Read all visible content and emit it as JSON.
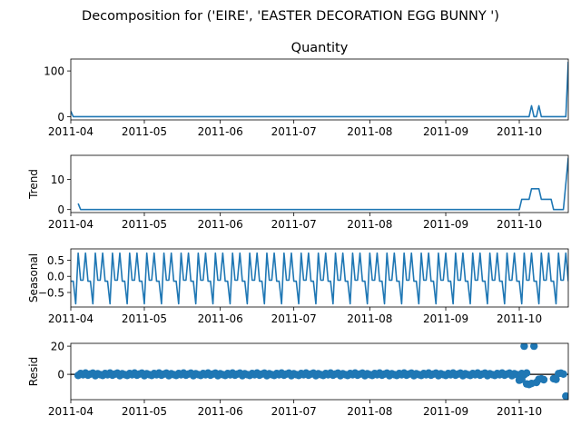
{
  "figure": {
    "suptitle": "Decomposition for ('EIRE', 'EASTER DECORATION EGG BUNNY ')",
    "line_color": "#1f77b4",
    "zero_line_color": "#000000"
  },
  "chart_data": [
    {
      "type": "line",
      "title": "Quantity",
      "ylabel": "",
      "ylim": [
        -7,
        126
      ],
      "yticks": [
        0,
        100
      ],
      "x_start": "2011-04-01",
      "x_end": "2011-10-21",
      "xticks": [
        "2011-04",
        "2011-05",
        "2011-06",
        "2011-07",
        "2011-08",
        "2011-09",
        "2011-10"
      ],
      "series": [
        {
          "x": [
            "2011-04-01",
            "2011-04-02",
            "2011-10-05",
            "2011-10-06",
            "2011-10-07",
            "2011-10-08",
            "2011-10-09",
            "2011-10-10",
            "2011-10-11",
            "2011-10-20",
            "2011-10-21"
          ],
          "values": [
            12,
            0,
            0,
            24,
            0,
            0,
            24,
            0,
            0,
            0,
            120
          ]
        }
      ]
    },
    {
      "type": "line",
      "title": "",
      "ylabel": "Trend",
      "ylim": [
        -1,
        18
      ],
      "yticks": [
        0,
        10
      ],
      "x_start": "2011-04-01",
      "x_end": "2011-10-21",
      "xticks": [
        "2011-04",
        "2011-05",
        "2011-06",
        "2011-07",
        "2011-08",
        "2011-09",
        "2011-10"
      ],
      "series": [
        {
          "x": [
            "2011-04-04",
            "2011-04-05",
            "2011-10-01",
            "2011-10-02",
            "2011-10-05",
            "2011-10-06",
            "2011-10-09",
            "2011-10-10",
            "2011-10-14",
            "2011-10-15",
            "2011-10-18",
            "2011-10-19",
            "2011-10-21"
          ],
          "values": [
            2,
            0,
            0,
            3.4,
            3.4,
            6.9,
            6.9,
            3.4,
            3.4,
            0,
            0,
            0,
            17.2
          ]
        }
      ]
    },
    {
      "type": "line",
      "title": "",
      "ylabel": "Seasonal",
      "ylim": [
        -0.95,
        0.85
      ],
      "yticks": [
        0.5,
        0.0,
        -0.5
      ],
      "ytick_labels": [
        "0.5",
        "0.0",
        "−0.5"
      ],
      "x_start": "2011-04-01",
      "x_end": "2011-10-21",
      "xticks": [
        "2011-04",
        "2011-05",
        "2011-06",
        "2011-07",
        "2011-08",
        "2011-09",
        "2011-10"
      ],
      "period_days": 7,
      "series": [
        {
          "pattern": [
            -0.15,
            -0.15,
            -0.85,
            0.72,
            -0.12,
            -0.12,
            0.72
          ],
          "start": "2011-04-01",
          "end": "2011-10-21"
        }
      ]
    },
    {
      "type": "scatter",
      "title": "",
      "ylabel": "Resid",
      "ylim": [
        -18,
        22
      ],
      "yticks": [
        0,
        20
      ],
      "zero_line": true,
      "x_start": "2011-04-01",
      "x_end": "2011-10-21",
      "xticks": [
        "2011-04",
        "2011-05",
        "2011-06",
        "2011-07",
        "2011-08",
        "2011-09",
        "2011-10"
      ],
      "series": [
        {
          "base": [
            -0.8,
            0.6,
            -0.3,
            0.9,
            -0.6,
            0.2,
            0.8,
            -0.9,
            0.4,
            -0.2
          ],
          "start": "2011-04-04",
          "end": "2011-10-04",
          "tail": [
            {
              "x": "2011-10-01",
              "y": -4.2
            },
            {
              "x": "2011-10-02",
              "y": -3.6
            },
            {
              "x": "2011-10-03",
              "y": 20
            },
            {
              "x": "2011-10-04",
              "y": -6.8
            },
            {
              "x": "2011-10-05",
              "y": -7.2
            },
            {
              "x": "2011-10-06",
              "y": -6.5
            },
            {
              "x": "2011-10-07",
              "y": 20
            },
            {
              "x": "2011-10-08",
              "y": -5.8
            },
            {
              "x": "2011-10-09",
              "y": -3.5
            },
            {
              "x": "2011-10-10",
              "y": -3.2
            },
            {
              "x": "2011-10-11",
              "y": -3.8
            },
            {
              "x": "2011-10-15",
              "y": -3.1
            },
            {
              "x": "2011-10-16",
              "y": -3.6
            },
            {
              "x": "2011-10-17",
              "y": 0.5
            },
            {
              "x": "2011-10-18",
              "y": 0.8
            },
            {
              "x": "2011-10-19",
              "y": 0.2
            },
            {
              "x": "2011-10-20",
              "y": -15.5
            }
          ]
        }
      ]
    }
  ]
}
